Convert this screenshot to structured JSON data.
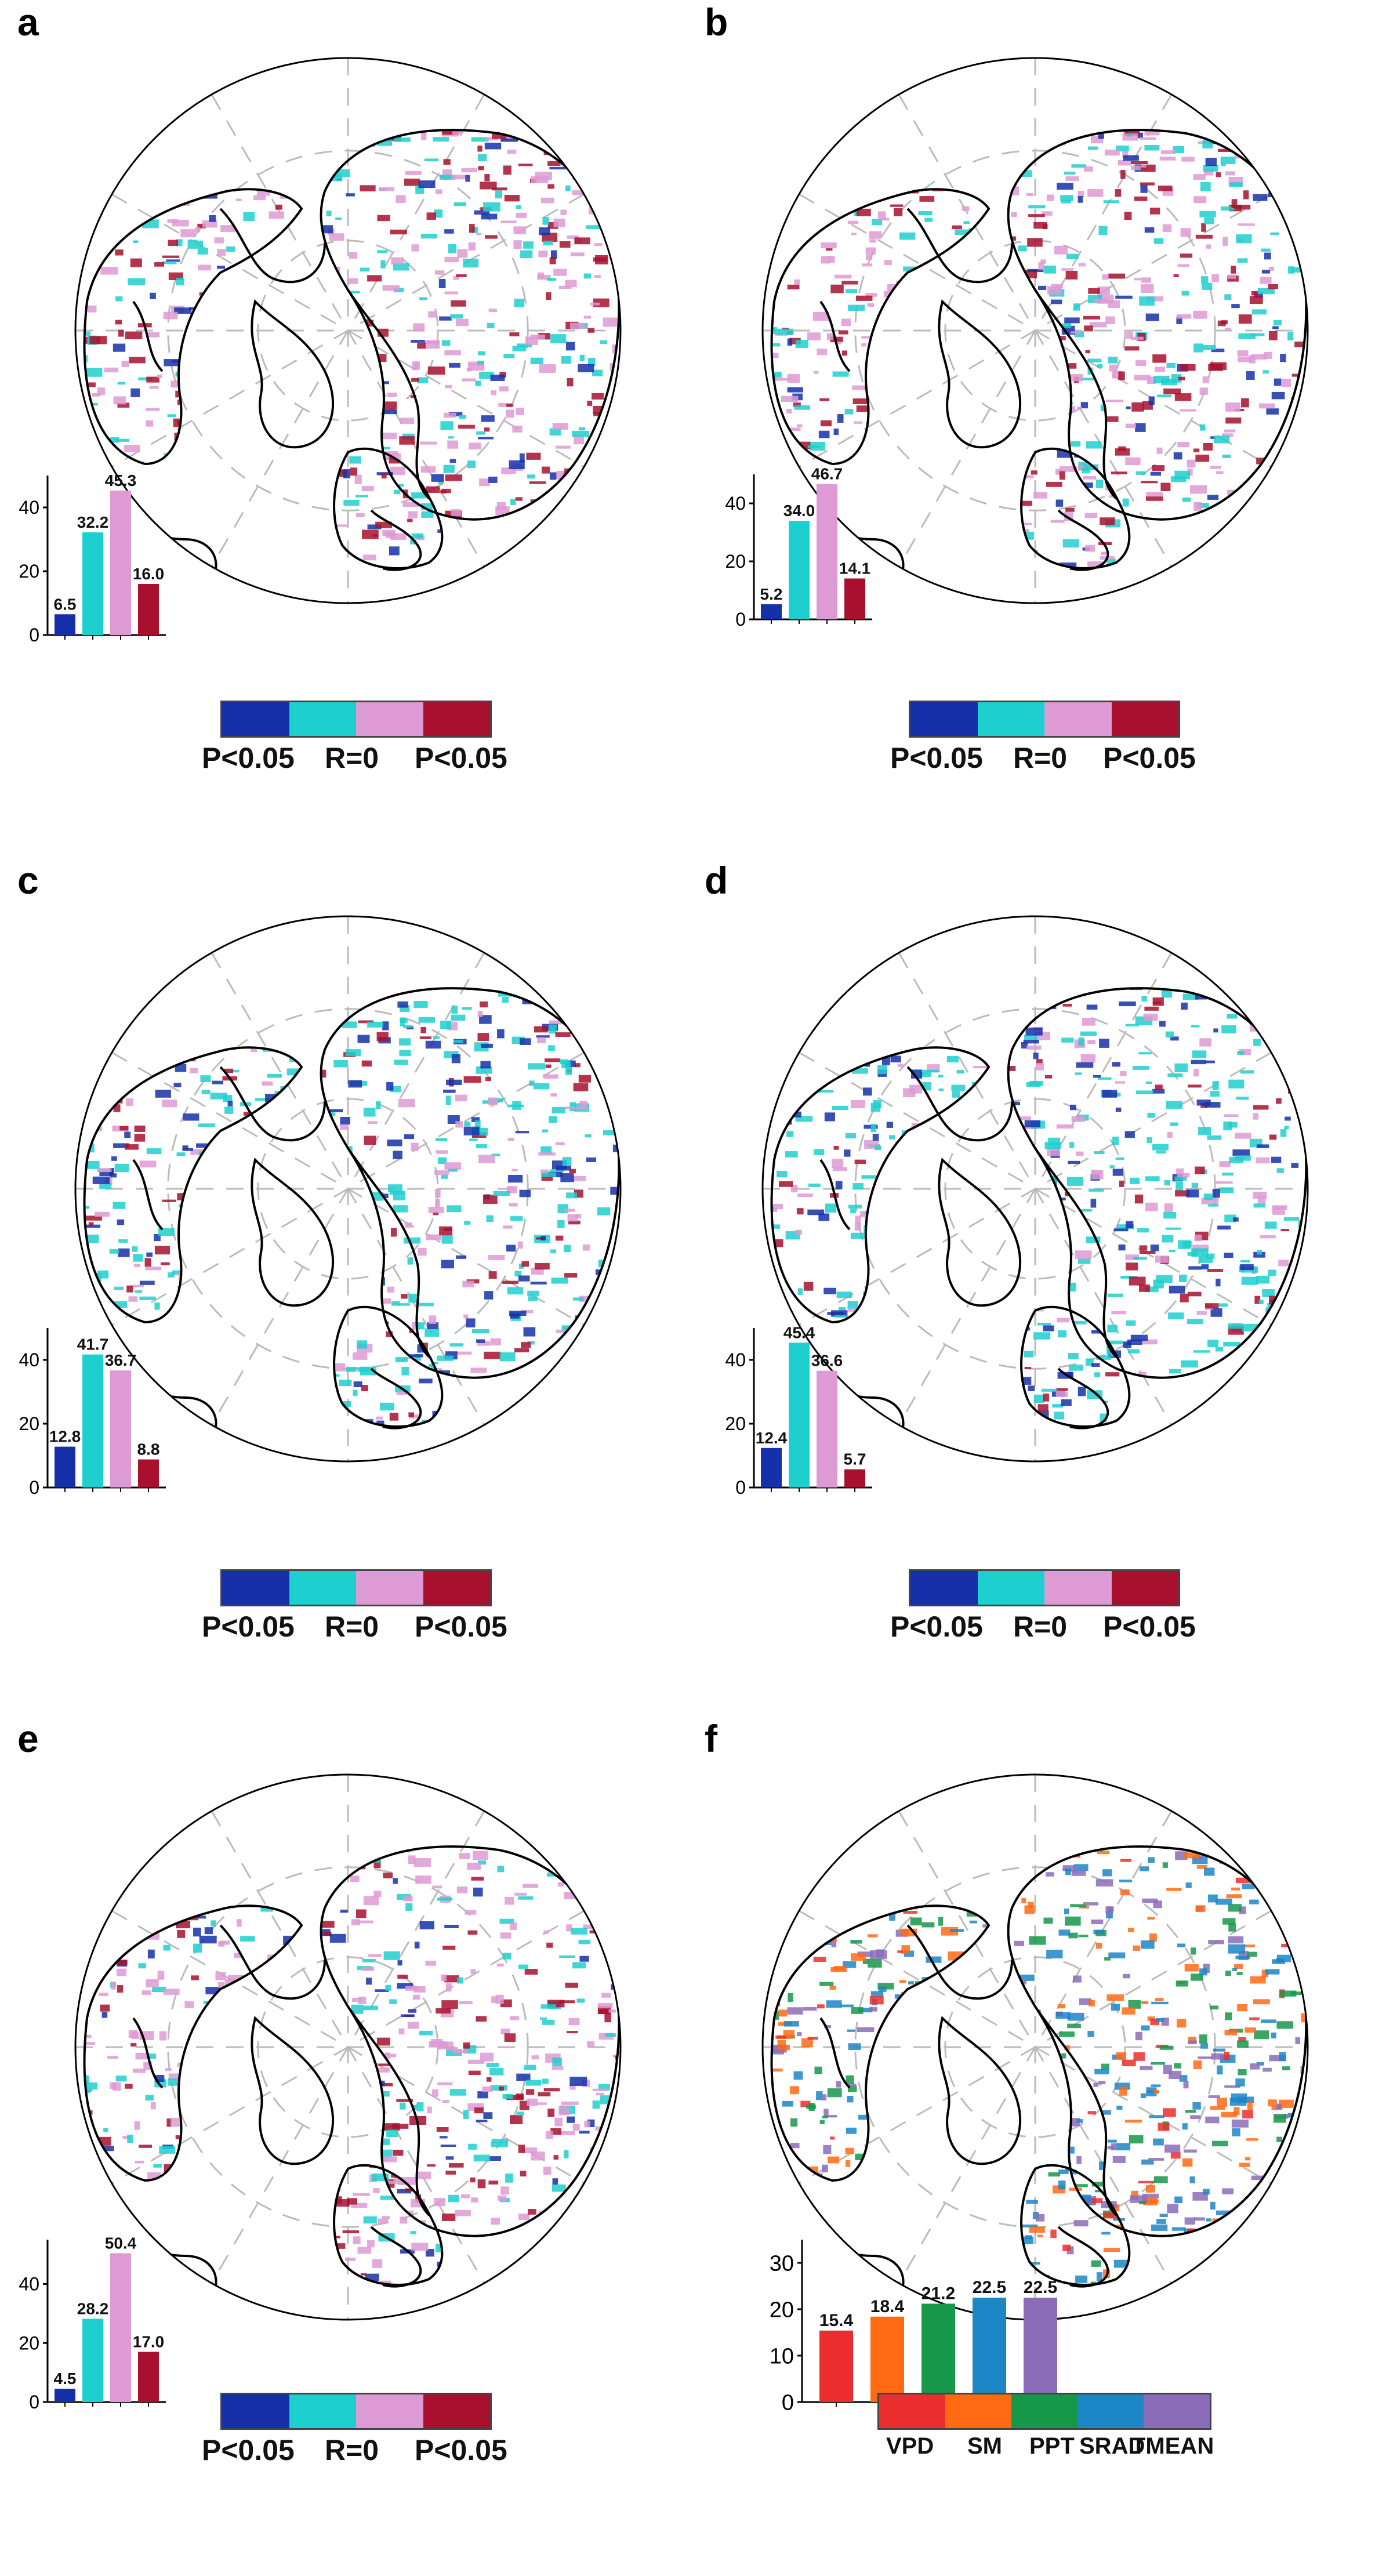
{
  "colors": {
    "sig_neg": "#1530a8",
    "neg": "#1ecfcf",
    "pos": "#de9ad4",
    "sig_pos": "#a8102e",
    "VPD": "#ec2d2d",
    "SM": "#ff6a13",
    "PPT": "#17974a",
    "SRAD": "#1c86c6",
    "TMEAN": "#8b6cb8"
  },
  "legend_corr": {
    "left_label": "P<0.05",
    "mid_label": "R=0",
    "right_label": "P<0.05"
  },
  "legend_driver": {
    "labels": [
      "VPD",
      "SM",
      "PPT",
      "SRAD",
      "TMEAN"
    ]
  },
  "panels": [
    {
      "letter": "a"
    },
    {
      "letter": "b"
    },
    {
      "letter": "c"
    },
    {
      "letter": "d"
    },
    {
      "letter": "e"
    },
    {
      "letter": "f"
    }
  ],
  "chart_data": [
    {
      "type": "bar",
      "panel": "a",
      "values": [
        6.5,
        32.2,
        45.3,
        16.0
      ],
      "value_labels": [
        "6.5",
        "32.2",
        "45.3",
        "16.0"
      ],
      "ylim": [
        0,
        50
      ],
      "yticks": [
        0,
        20,
        40
      ],
      "ytick_labels": [
        "0",
        "20",
        "40"
      ]
    },
    {
      "type": "bar",
      "panel": "b",
      "values": [
        5.2,
        34.0,
        46.7,
        14.1
      ],
      "value_labels": [
        "5.2",
        "34.0",
        "46.7",
        "14.1"
      ],
      "ylim": [
        0,
        50
      ],
      "yticks": [
        0,
        20,
        40
      ],
      "ytick_labels": [
        "0",
        "20",
        "40"
      ]
    },
    {
      "type": "bar",
      "panel": "c",
      "values": [
        12.8,
        41.7,
        36.7,
        8.8
      ],
      "value_labels": [
        "12.8",
        "41.7",
        "36.7",
        "8.8"
      ],
      "ylim": [
        0,
        50
      ],
      "yticks": [
        0,
        20,
        40
      ],
      "ytick_labels": [
        "0",
        "20",
        "40"
      ]
    },
    {
      "type": "bar",
      "panel": "d",
      "values": [
        12.4,
        45.4,
        36.6,
        5.7
      ],
      "value_labels": [
        "12.4",
        "45.4",
        "36.6",
        "5.7"
      ],
      "ylim": [
        0,
        50
      ],
      "yticks": [
        0,
        20,
        40
      ],
      "ytick_labels": [
        "0",
        "20",
        "40"
      ]
    },
    {
      "type": "bar",
      "panel": "e",
      "values": [
        4.5,
        28.2,
        50.4,
        17.0
      ],
      "value_labels": [
        "4.5",
        "28.2",
        "50.4",
        "17.0"
      ],
      "ylim": [
        0,
        55
      ],
      "yticks": [
        0,
        20,
        40
      ],
      "ytick_labels": [
        "0",
        "20",
        "40"
      ]
    },
    {
      "type": "bar",
      "panel": "f",
      "values": [
        15.4,
        18.4,
        21.2,
        22.5,
        22.5
      ],
      "value_labels": [
        "15.4",
        "18.4",
        "21.2",
        "22.5",
        "22.5"
      ],
      "ylim": [
        0,
        35
      ],
      "yticks": [
        0,
        10,
        20,
        30
      ],
      "ytick_labels": [
        "0",
        "10",
        "20",
        "30"
      ]
    }
  ]
}
